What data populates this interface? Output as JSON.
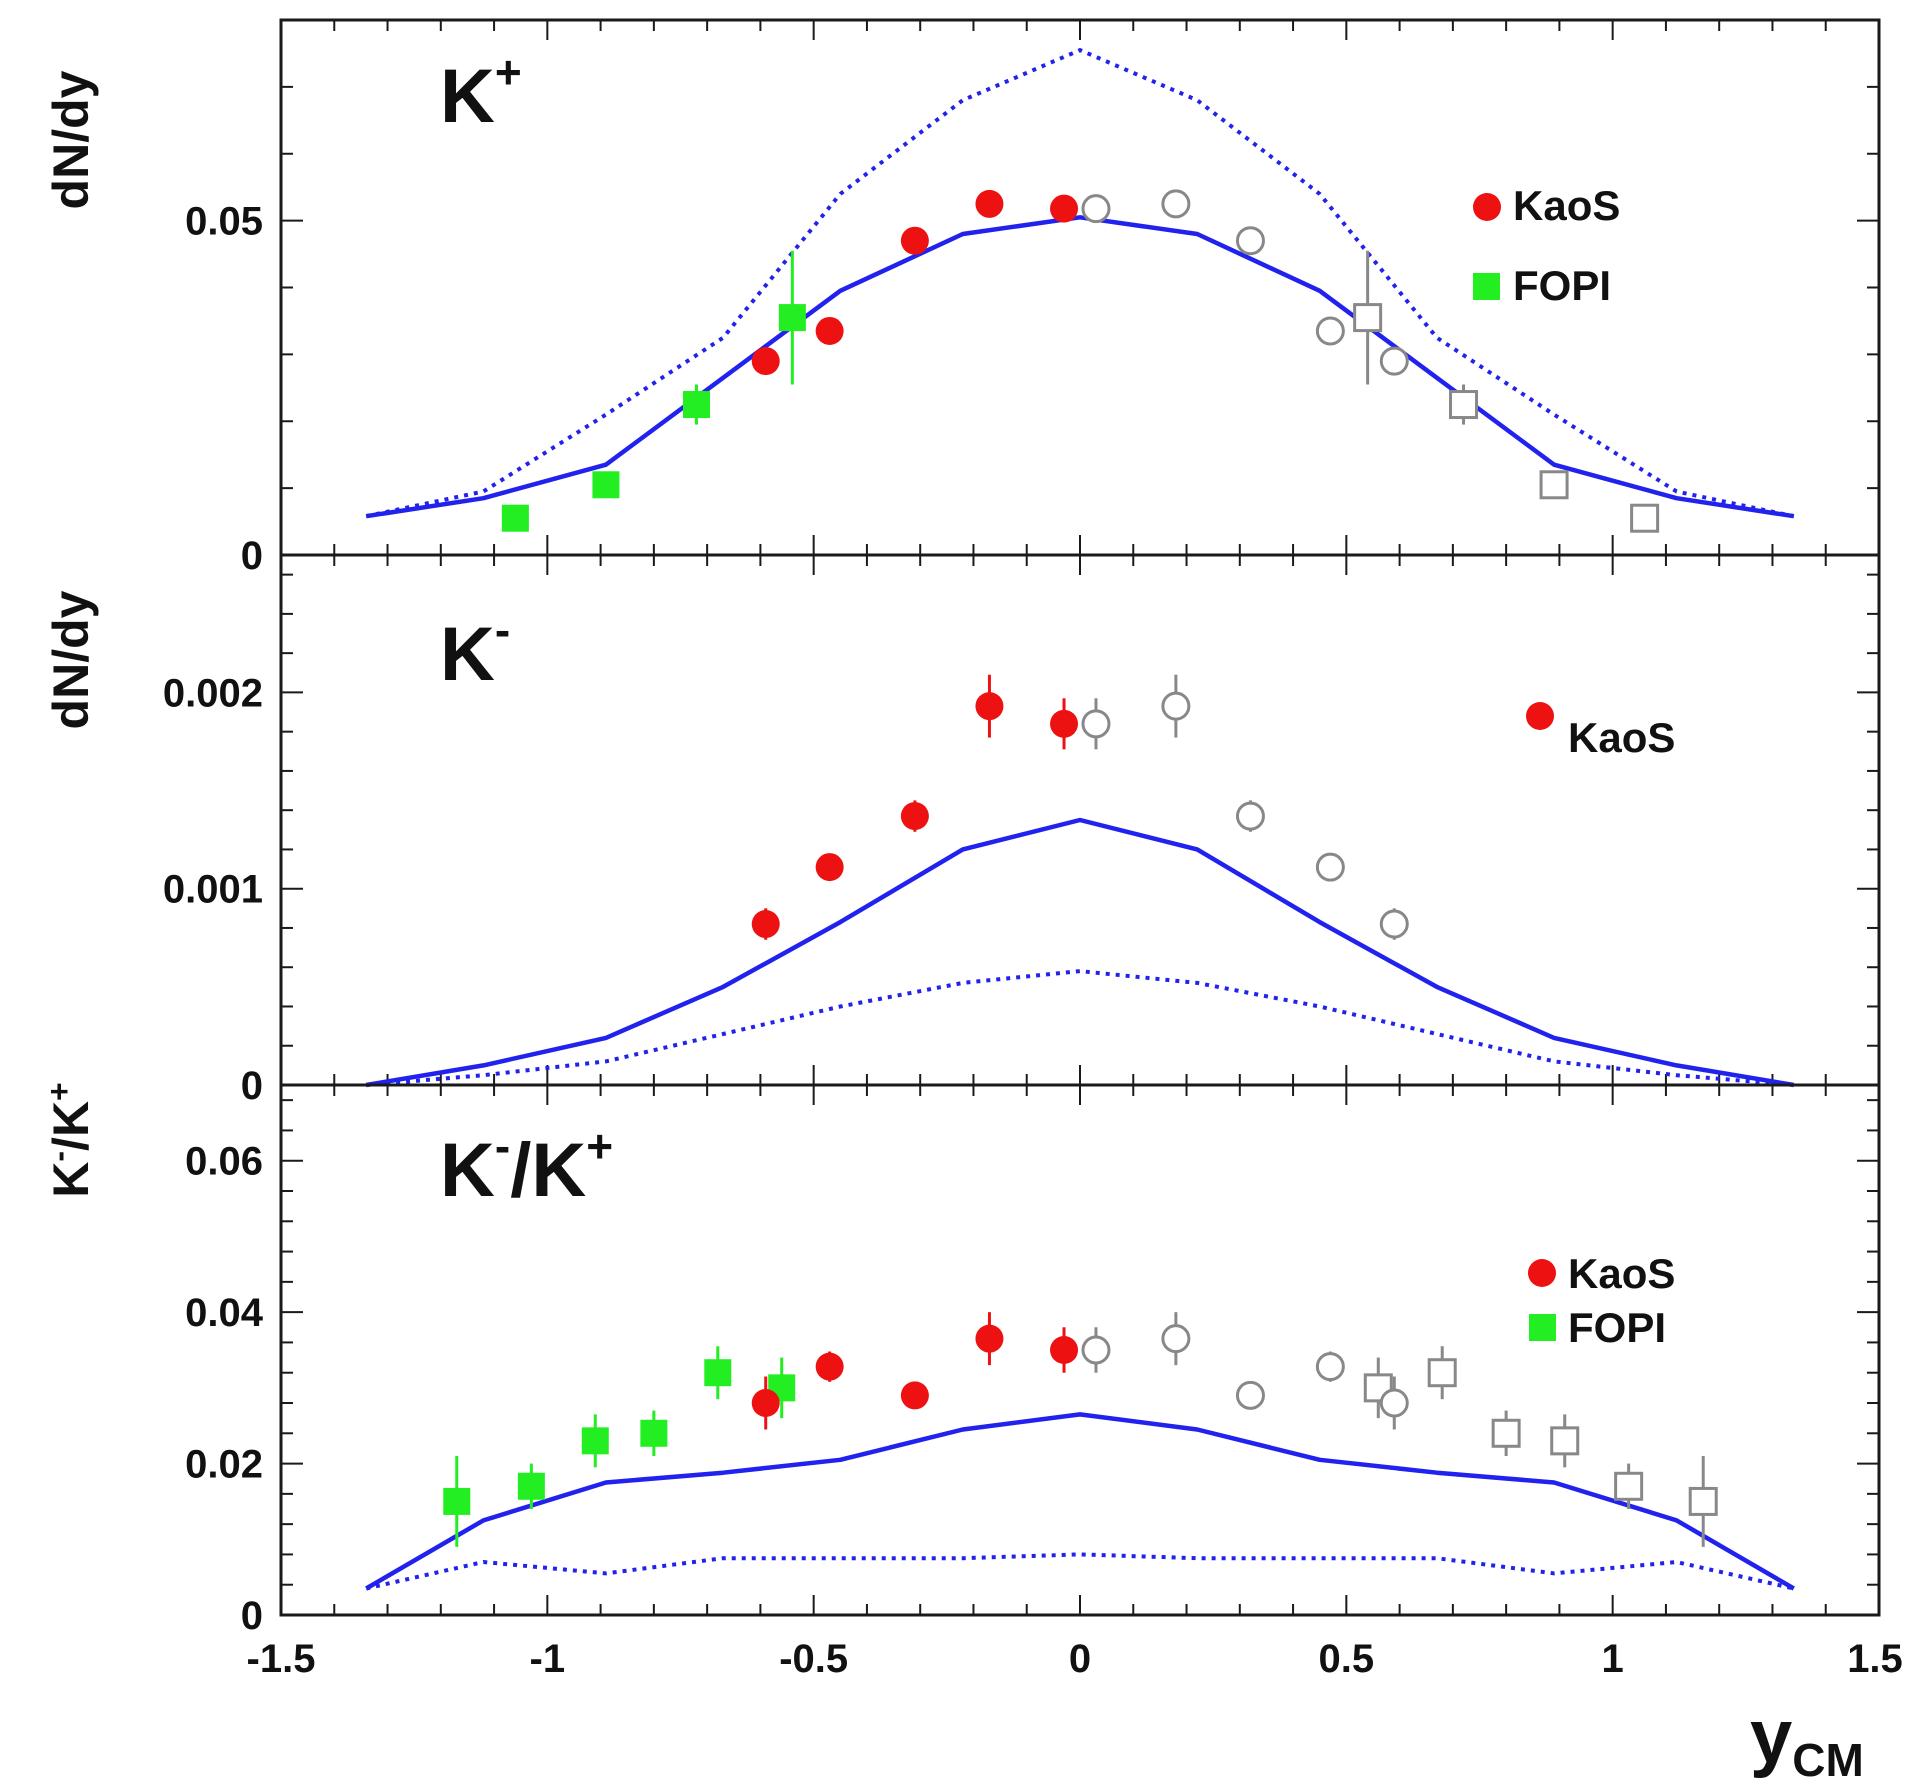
{
  "chart_data": {
    "type": "scatter",
    "shared_x": {
      "label_main": "y",
      "label_sub": "CM",
      "range": [
        -1.5,
        1.5
      ],
      "tick_labels": [
        "-1.5",
        "-1",
        "-0.5",
        "0",
        "0.5",
        "1",
        "1.5"
      ]
    },
    "colors": {
      "kaos": "#ee1111",
      "fopi": "#22ee22",
      "mirrored": "#888888",
      "model": "#2222ee"
    },
    "panels": [
      {
        "id": "kplus",
        "label_main": "K",
        "label_sup": "+",
        "ylabel": "dN/dy",
        "ylim": [
          0,
          0.08
        ],
        "yticks": [
          0,
          0.05
        ],
        "ytick_labels": [
          "0",
          "0.05"
        ],
        "legend": [
          {
            "name": "KaoS",
            "marker": "circle"
          },
          {
            "name": "FOPI",
            "marker": "square"
          }
        ],
        "kaos": {
          "x": [
            -0.59,
            -0.47,
            -0.31,
            -0.17,
            -0.03
          ],
          "y": [
            0.029,
            0.0335,
            0.047,
            0.0525,
            0.0518
          ],
          "err": [
            0,
            0,
            0,
            0,
            0
          ]
        },
        "kaos_mirrored": {
          "x": [
            0.03,
            0.18,
            0.32,
            0.47,
            0.59
          ],
          "y": [
            0.0518,
            0.0525,
            0.047,
            0.0335,
            0.029
          ],
          "err": [
            0,
            0,
            0,
            0,
            0
          ]
        },
        "fopi": {
          "x": [
            -1.06,
            -0.89,
            -0.72,
            -0.54
          ],
          "y": [
            0.0055,
            0.0105,
            0.0225,
            0.0355
          ],
          "err": [
            0,
            0,
            0.003,
            0.01
          ]
        },
        "fopi_mirrored": {
          "x": [
            0.54,
            0.72,
            0.89,
            1.06
          ],
          "y": [
            0.0355,
            0.0225,
            0.0105,
            0.0055
          ],
          "err": [
            0.01,
            0.003,
            0,
            0
          ]
        },
        "model_solid": {
          "x": [
            -1.34,
            -1.12,
            -0.89,
            -0.67,
            -0.45,
            -0.22,
            0,
            0.22,
            0.45,
            0.67,
            0.89,
            1.12,
            1.34
          ],
          "y": [
            0.0058,
            0.0085,
            0.0135,
            0.0265,
            0.0395,
            0.048,
            0.0505,
            0.048,
            0.0395,
            0.0265,
            0.0135,
            0.0085,
            0.0058
          ]
        },
        "model_dotted": {
          "x": [
            -1.34,
            -1.12,
            -0.89,
            -0.67,
            -0.45,
            -0.22,
            0,
            0.22,
            0.45,
            0.67,
            0.89,
            1.12,
            1.34
          ],
          "y": [
            0.0058,
            0.0095,
            0.021,
            0.0325,
            0.054,
            0.068,
            0.0755,
            0.068,
            0.054,
            0.0325,
            0.021,
            0.0095,
            0.0058
          ]
        }
      },
      {
        "id": "kminus",
        "label_main": "K",
        "label_sup": "-",
        "ylabel": "dN/dy",
        "ylim": [
          0,
          0.0027
        ],
        "yticks": [
          0,
          0.001,
          0.002
        ],
        "ytick_labels": [
          "0",
          "0.001",
          "0.002"
        ],
        "legend": [
          {
            "name": "KaoS",
            "marker": "circle"
          }
        ],
        "kaos": {
          "x": [
            -0.59,
            -0.47,
            -0.31,
            -0.17,
            -0.03
          ],
          "y": [
            0.00082,
            0.00111,
            0.00137,
            0.00193,
            0.00184
          ],
          "err": [
            8e-05,
            5e-05,
            8e-05,
            0.00016,
            0.00013
          ]
        },
        "kaos_mirrored": {
          "x": [
            0.03,
            0.18,
            0.32,
            0.47,
            0.59
          ],
          "y": [
            0.00184,
            0.00193,
            0.00137,
            0.00111,
            0.00082
          ],
          "err": [
            0.00013,
            0.00016,
            8e-05,
            5e-05,
            8e-05
          ]
        },
        "fopi": {
          "x": [],
          "y": [],
          "err": []
        },
        "fopi_mirrored": {
          "x": [],
          "y": [],
          "err": []
        },
        "model_solid": {
          "x": [
            -1.34,
            -1.12,
            -0.89,
            -0.67,
            -0.45,
            -0.22,
            0,
            0.22,
            0.45,
            0.67,
            0.89,
            1.12,
            1.34
          ],
          "y": [
            0,
            0.0001,
            0.00024,
            0.0005,
            0.00083,
            0.0012,
            0.00135,
            0.0012,
            0.00083,
            0.0005,
            0.00024,
            0.0001,
            0
          ]
        },
        "model_dotted": {
          "x": [
            -1.34,
            -1.12,
            -0.89,
            -0.67,
            -0.45,
            -0.22,
            0,
            0.22,
            0.45,
            0.67,
            0.89,
            1.12,
            1.34
          ],
          "y": [
            0,
            5e-05,
            0.00012,
            0.00026,
            0.0004,
            0.00052,
            0.00058,
            0.00052,
            0.0004,
            0.00026,
            0.00012,
            5e-05,
            0
          ]
        }
      },
      {
        "id": "ratio",
        "label_main": "K",
        "label_sup": "-",
        "label_mid": "/K",
        "label_sup2": "+",
        "ylabel_main": "K",
        "ylabel_sup": "-",
        "ylabel_mid": "/K",
        "ylabel_sup2": "+",
        "ylim": [
          0,
          0.07
        ],
        "yticks": [
          0,
          0.02,
          0.04,
          0.06
        ],
        "ytick_labels": [
          "0",
          "0.02",
          "0.04",
          "0.06"
        ],
        "legend": [
          {
            "name": "KaoS",
            "marker": "circle"
          },
          {
            "name": "FOPI",
            "marker": "square"
          }
        ],
        "kaos": {
          "x": [
            -0.59,
            -0.47,
            -0.31,
            -0.17,
            -0.03
          ],
          "y": [
            0.028,
            0.0328,
            0.029,
            0.0365,
            0.035
          ],
          "err": [
            0.0035,
            0.002,
            0,
            0.0035,
            0.003
          ]
        },
        "kaos_mirrored": {
          "x": [
            0.03,
            0.18,
            0.32,
            0.47,
            0.59
          ],
          "y": [
            0.035,
            0.0365,
            0.029,
            0.0328,
            0.028
          ],
          "err": [
            0.003,
            0.0035,
            0,
            0.002,
            0.0035
          ]
        },
        "fopi": {
          "x": [
            -1.17,
            -1.03,
            -0.91,
            -0.8,
            -0.68,
            -0.56
          ],
          "y": [
            0.015,
            0.017,
            0.023,
            0.024,
            0.032,
            0.03
          ],
          "err": [
            0.006,
            0.003,
            0.0035,
            0.003,
            0.0035,
            0.004
          ]
        },
        "fopi_mirrored": {
          "x": [
            0.56,
            0.68,
            0.8,
            0.91,
            1.03,
            1.17
          ],
          "y": [
            0.03,
            0.032,
            0.024,
            0.023,
            0.017,
            0.015
          ],
          "err": [
            0.004,
            0.0035,
            0.003,
            0.0035,
            0.003,
            0.006
          ]
        },
        "model_solid": {
          "x": [
            -1.34,
            -1.12,
            -0.89,
            -0.67,
            -0.45,
            -0.22,
            0,
            0.22,
            0.45,
            0.67,
            0.89,
            1.12,
            1.34
          ],
          "y": [
            0.0035,
            0.0125,
            0.0175,
            0.0188,
            0.0205,
            0.0245,
            0.0265,
            0.0245,
            0.0205,
            0.0188,
            0.0175,
            0.0125,
            0.0035
          ]
        },
        "model_dotted": {
          "x": [
            -1.34,
            -1.12,
            -0.89,
            -0.67,
            -0.45,
            -0.22,
            0,
            0.22,
            0.45,
            0.67,
            0.89,
            1.12,
            1.34
          ],
          "y": [
            0.0035,
            0.007,
            0.0055,
            0.0075,
            0.0075,
            0.0075,
            0.008,
            0.0075,
            0.0075,
            0.0075,
            0.0055,
            0.007,
            0.0035
          ]
        }
      }
    ]
  }
}
